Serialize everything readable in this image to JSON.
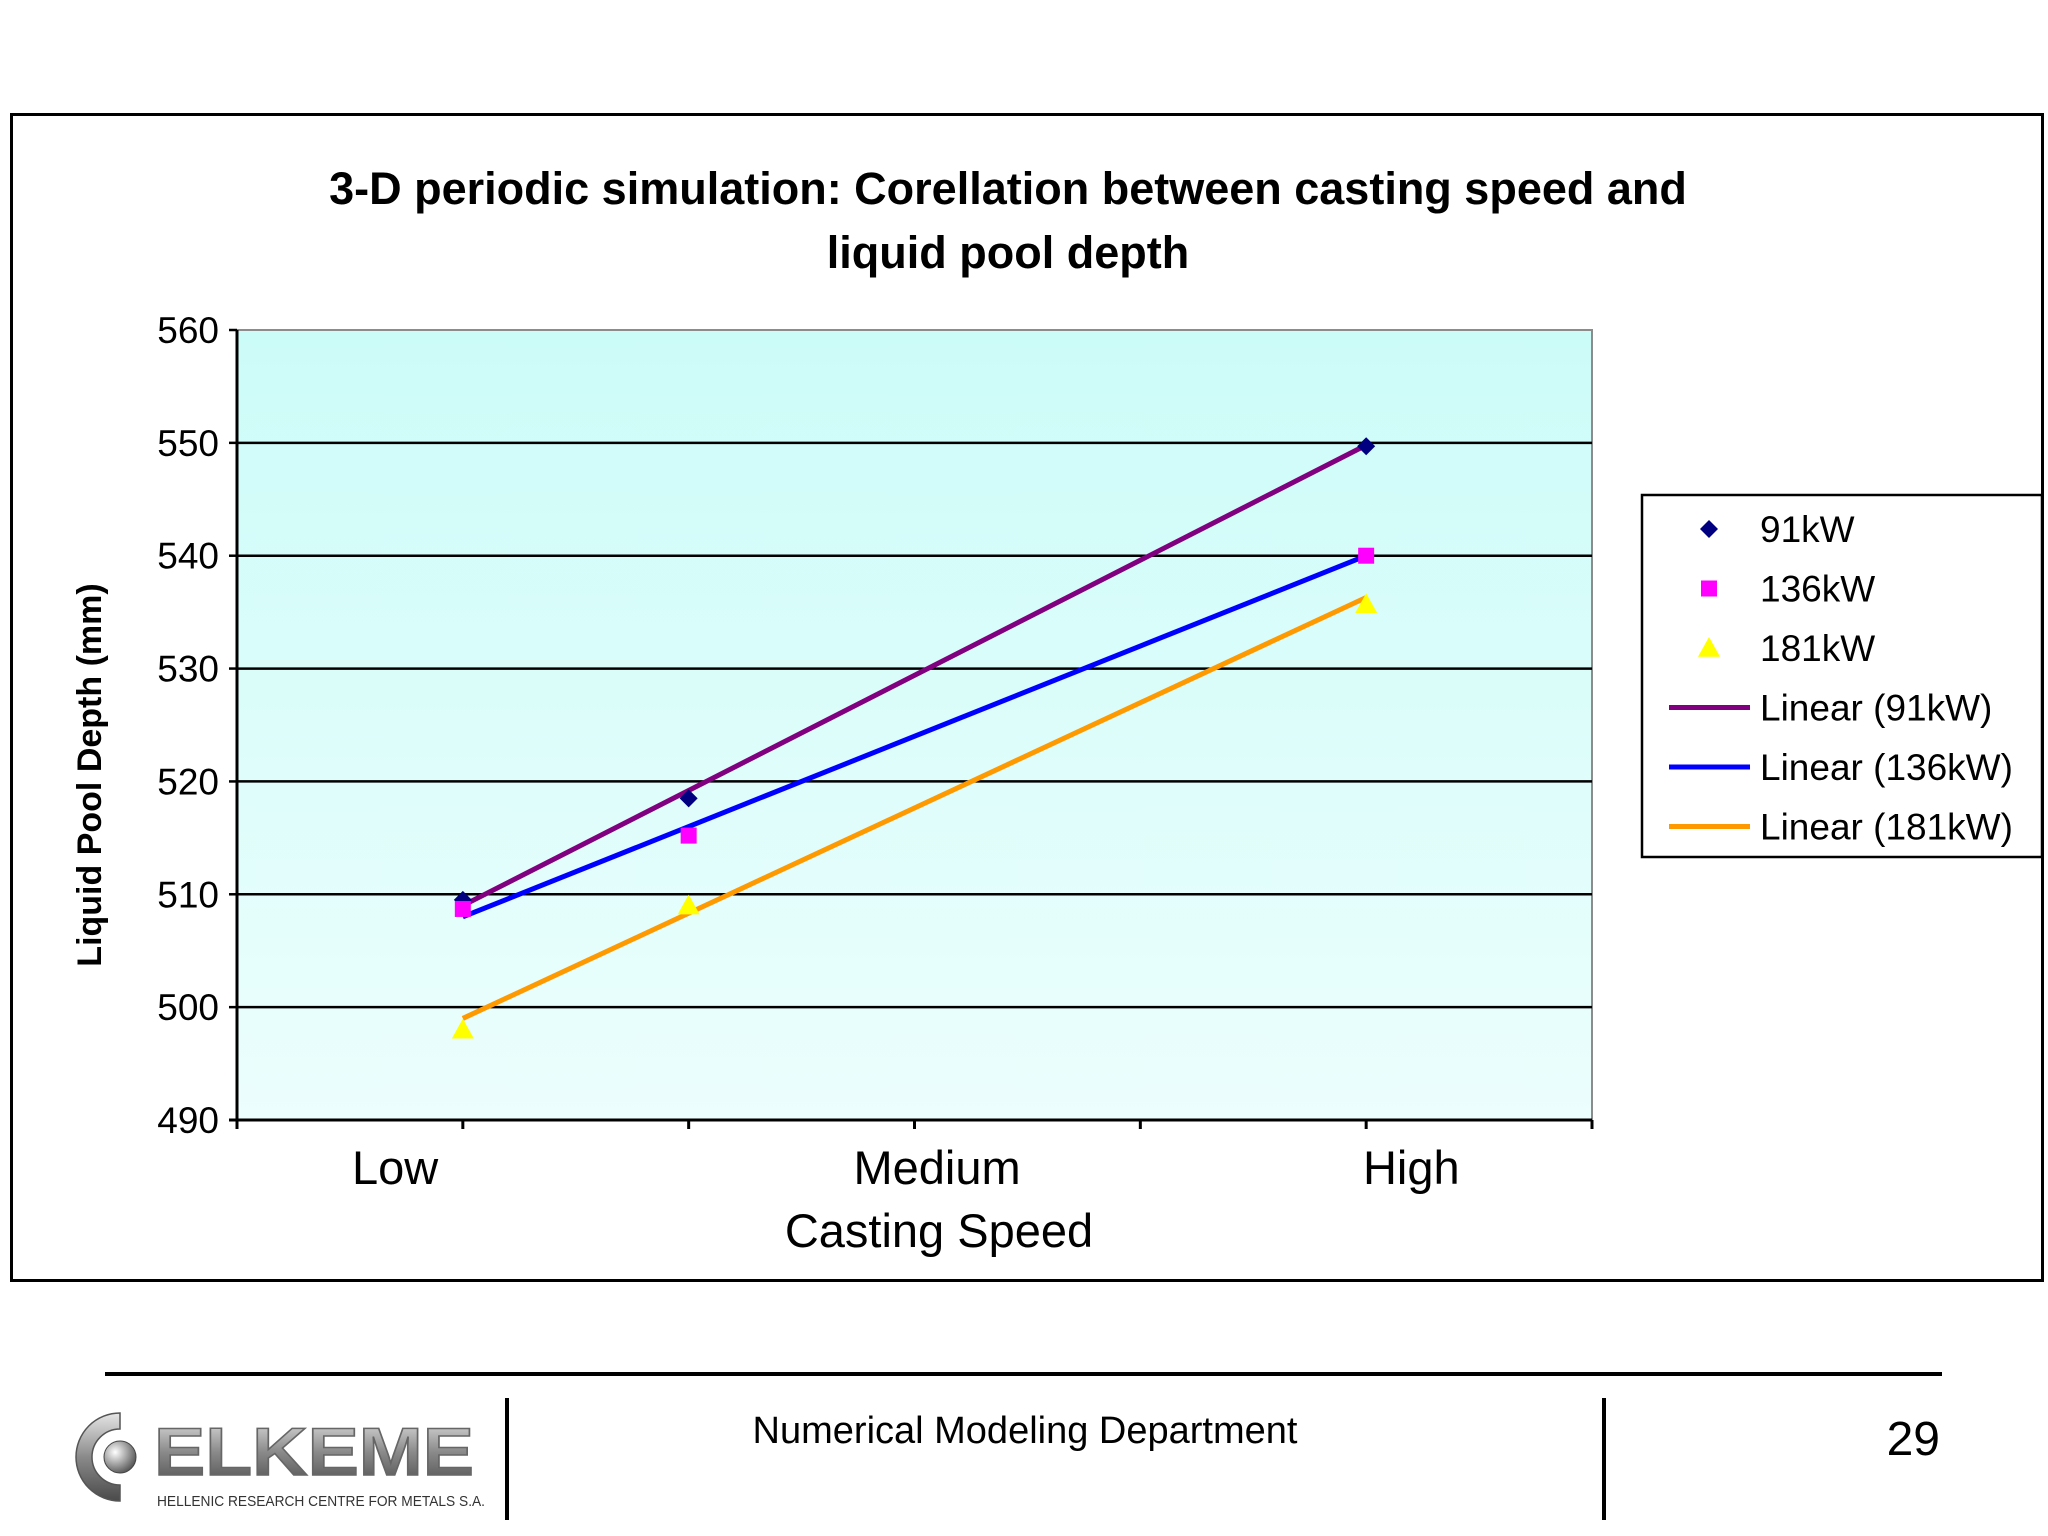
{
  "chart_data": {
    "type": "scatter",
    "title_lines": [
      "3-D periodic simulation: Corellation between casting speed and",
      "liquid pool depth"
    ],
    "xlabel": "Casting Speed",
    "ylabel": "Liquid Pool Depth (mm)",
    "x_tick_labels": [
      {
        "label": "Low",
        "x": 0.7
      },
      {
        "label": "Medium",
        "x": 3.1
      },
      {
        "label": "High",
        "x": 5.2
      }
    ],
    "xlim": [
      0,
      6
    ],
    "ylim": [
      490,
      560
    ],
    "yticks": [
      490,
      500,
      510,
      520,
      530,
      540,
      550,
      560
    ],
    "grid": true,
    "legend_position": "right",
    "series": [
      {
        "name": "91kW",
        "marker": "diamond",
        "color": "#000080",
        "points": [
          [
            1,
            509.5
          ],
          [
            2,
            518.5
          ],
          [
            5,
            549.7
          ]
        ]
      },
      {
        "name": "136kW",
        "marker": "square",
        "color": "#ff00ff",
        "points": [
          [
            1,
            508.7
          ],
          [
            2,
            515.2
          ],
          [
            5,
            540
          ]
        ]
      },
      {
        "name": "181kW",
        "marker": "triangle",
        "color": "#ffff00",
        "points": [
          [
            1,
            498
          ],
          [
            2,
            509
          ],
          [
            5,
            535.7
          ]
        ]
      }
    ],
    "trendlines": [
      {
        "name": "Linear (91kW)",
        "color": "#800080",
        "from": [
          1,
          509
        ],
        "to": [
          5,
          549.8
        ]
      },
      {
        "name": "Linear (136kW)",
        "color": "#0000ff",
        "from": [
          1,
          508
        ],
        "to": [
          5,
          540
        ]
      },
      {
        "name": "Linear (181kW)",
        "color": "#ff9900",
        "from": [
          1,
          499
        ],
        "to": [
          5,
          536.3
        ]
      }
    ],
    "colors": {
      "plot_top": "#ccfcf8",
      "plot_bottom": "#ecfefd"
    }
  },
  "footer": {
    "department": "Numerical Modeling Department",
    "page_number": "29",
    "logo_name": "ELKEME",
    "logo_tagline": "HELLENIC RESEARCH CENTRE FOR METALS S.A."
  }
}
